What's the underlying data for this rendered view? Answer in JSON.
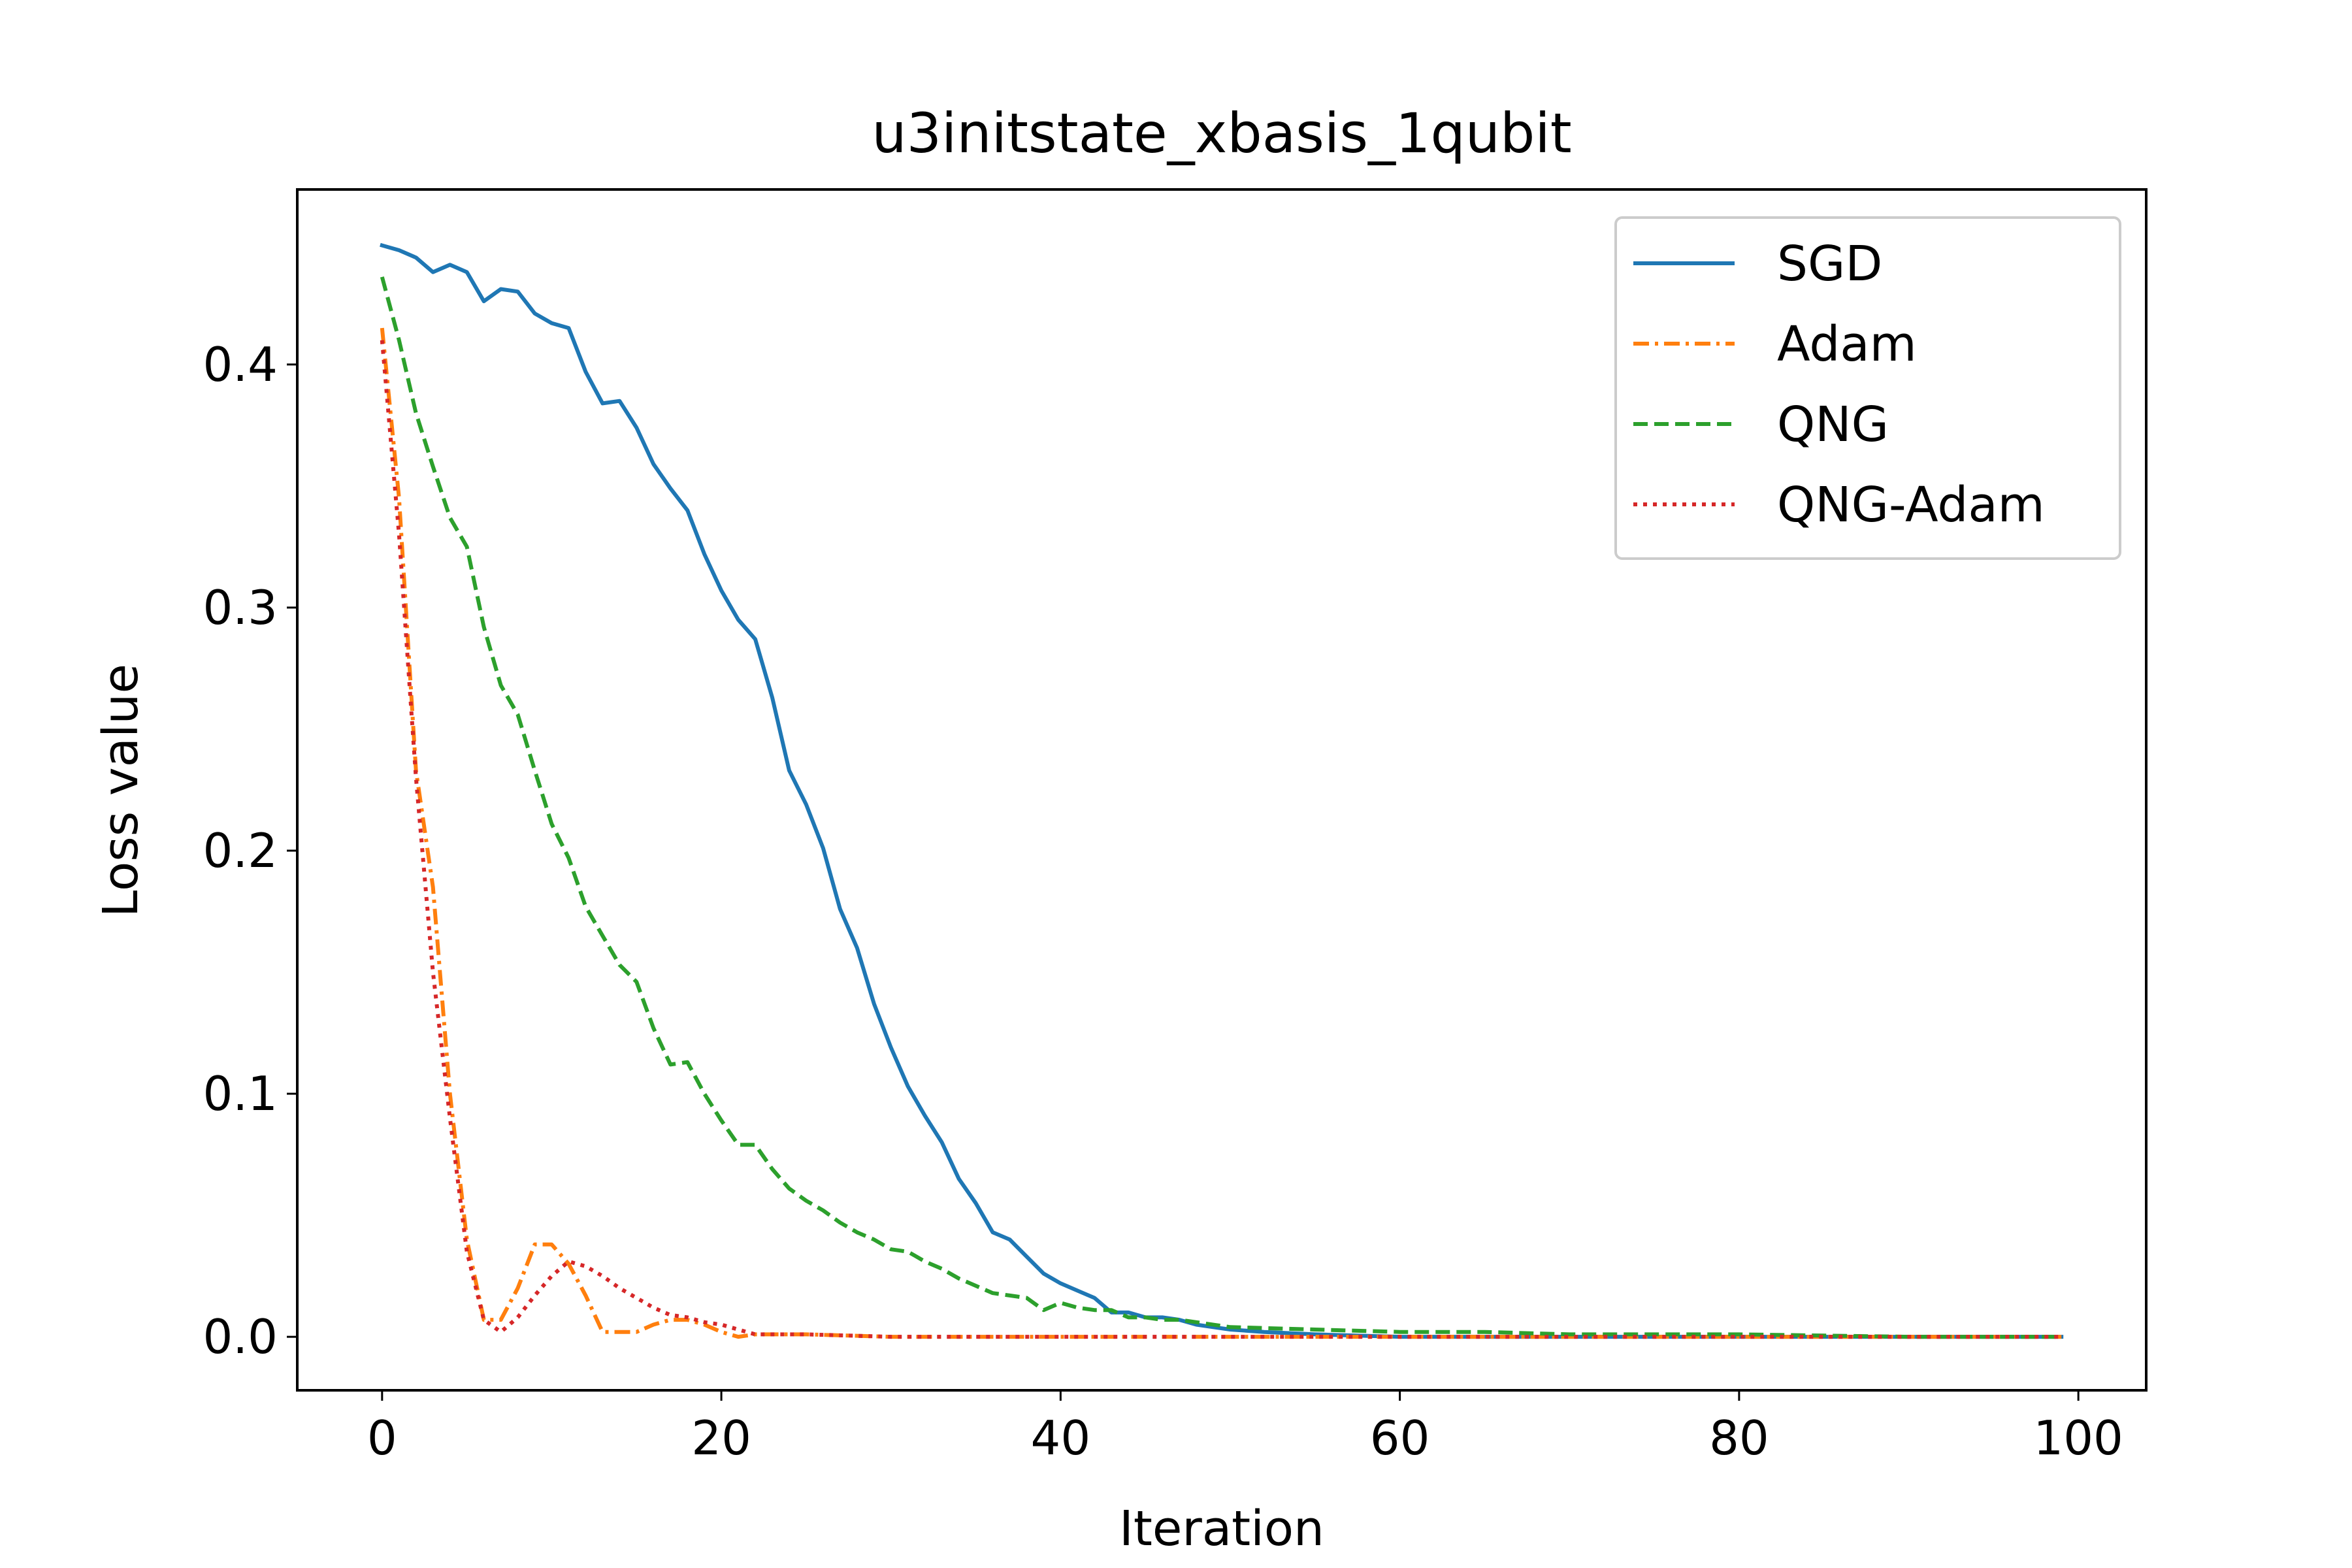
{
  "chart_data": {
    "type": "line",
    "title": "u3initstate_xbasis_1qubit",
    "xlabel": "Iteration",
    "ylabel": "Loss value",
    "xlim": [
      -5,
      104
    ],
    "ylim": [
      -0.022,
      0.472
    ],
    "x_ticks": [
      0,
      20,
      40,
      60,
      80,
      100
    ],
    "x_tick_labels": [
      "0",
      "20",
      "40",
      "60",
      "80",
      "100"
    ],
    "y_ticks": [
      0.0,
      0.1,
      0.2,
      0.3,
      0.4
    ],
    "y_tick_labels": [
      "0.0",
      "0.1",
      "0.2",
      "0.3",
      "0.4"
    ],
    "grid": false,
    "legend_position": "top-right",
    "series": [
      {
        "name": "SGD",
        "color": "#1f77b4",
        "dash": "solid",
        "x": [
          0,
          1,
          2,
          3,
          4,
          5,
          6,
          7,
          8,
          9,
          10,
          11,
          12,
          13,
          14,
          15,
          16,
          17,
          18,
          19,
          20,
          21,
          22,
          23,
          24,
          25,
          26,
          27,
          28,
          29,
          30,
          31,
          32,
          33,
          34,
          35,
          36,
          37,
          38,
          39,
          40,
          41,
          42,
          43,
          44,
          45,
          46,
          47,
          48,
          49,
          50,
          52,
          55,
          60,
          65,
          70,
          80,
          90,
          99
        ],
        "y": [
          0.449,
          0.447,
          0.444,
          0.438,
          0.441,
          0.438,
          0.426,
          0.431,
          0.43,
          0.421,
          0.417,
          0.415,
          0.397,
          0.384,
          0.385,
          0.374,
          0.359,
          0.349,
          0.34,
          0.322,
          0.307,
          0.295,
          0.287,
          0.263,
          0.233,
          0.219,
          0.201,
          0.176,
          0.16,
          0.137,
          0.119,
          0.103,
          0.091,
          0.08,
          0.065,
          0.055,
          0.043,
          0.04,
          0.033,
          0.026,
          0.022,
          0.019,
          0.016,
          0.01,
          0.01,
          0.008,
          0.008,
          0.007,
          0.005,
          0.004,
          0.003,
          0.002,
          0.001,
          0.0,
          0.0,
          0.0,
          0.0,
          0.0,
          0.0
        ]
      },
      {
        "name": "Adam",
        "color": "#ff7f0e",
        "dash": "dashdot",
        "x": [
          0,
          1,
          2,
          3,
          4,
          5,
          6,
          7,
          8,
          9,
          10,
          11,
          12,
          13,
          14,
          15,
          16,
          17,
          18,
          19,
          20,
          21,
          22,
          25,
          30,
          40,
          60,
          80,
          99
        ],
        "y": [
          0.415,
          0.345,
          0.233,
          0.185,
          0.1,
          0.04,
          0.007,
          0.007,
          0.02,
          0.038,
          0.038,
          0.03,
          0.017,
          0.002,
          0.002,
          0.002,
          0.005,
          0.007,
          0.007,
          0.005,
          0.002,
          0.0,
          0.001,
          0.001,
          0.0,
          0.0,
          0.0,
          0.0,
          0.0
        ]
      },
      {
        "name": "QNG",
        "color": "#2ca02c",
        "dash": "dashed",
        "x": [
          0,
          1,
          2,
          3,
          4,
          5,
          6,
          7,
          8,
          9,
          10,
          11,
          12,
          13,
          14,
          15,
          16,
          17,
          18,
          19,
          20,
          21,
          22,
          23,
          24,
          25,
          26,
          27,
          28,
          29,
          30,
          31,
          32,
          33,
          34,
          35,
          36,
          37,
          38,
          39,
          40,
          41,
          42,
          43,
          44,
          45,
          46,
          47,
          48,
          50,
          55,
          60,
          65,
          70,
          80,
          90,
          99
        ],
        "y": [
          0.436,
          0.41,
          0.38,
          0.358,
          0.337,
          0.325,
          0.292,
          0.268,
          0.256,
          0.233,
          0.211,
          0.197,
          0.177,
          0.165,
          0.153,
          0.146,
          0.127,
          0.112,
          0.113,
          0.1,
          0.089,
          0.079,
          0.079,
          0.069,
          0.061,
          0.056,
          0.052,
          0.047,
          0.043,
          0.04,
          0.036,
          0.035,
          0.031,
          0.028,
          0.024,
          0.021,
          0.018,
          0.017,
          0.016,
          0.011,
          0.014,
          0.012,
          0.011,
          0.011,
          0.008,
          0.008,
          0.007,
          0.007,
          0.006,
          0.004,
          0.003,
          0.002,
          0.002,
          0.001,
          0.001,
          0.0,
          0.0
        ]
      },
      {
        "name": "QNG-Adam",
        "color": "#d62728",
        "dash": "dotted",
        "x": [
          0,
          1,
          2,
          3,
          4,
          5,
          6,
          7,
          8,
          9,
          10,
          11,
          12,
          13,
          14,
          15,
          16,
          17,
          18,
          19,
          20,
          21,
          22,
          25,
          30,
          40,
          60,
          80,
          99
        ],
        "y": [
          0.41,
          0.33,
          0.23,
          0.15,
          0.09,
          0.035,
          0.007,
          0.002,
          0.008,
          0.017,
          0.025,
          0.031,
          0.029,
          0.025,
          0.02,
          0.016,
          0.012,
          0.009,
          0.008,
          0.006,
          0.005,
          0.003,
          0.001,
          0.001,
          0.0,
          0.0,
          0.0,
          0.0,
          0.0
        ]
      }
    ]
  }
}
